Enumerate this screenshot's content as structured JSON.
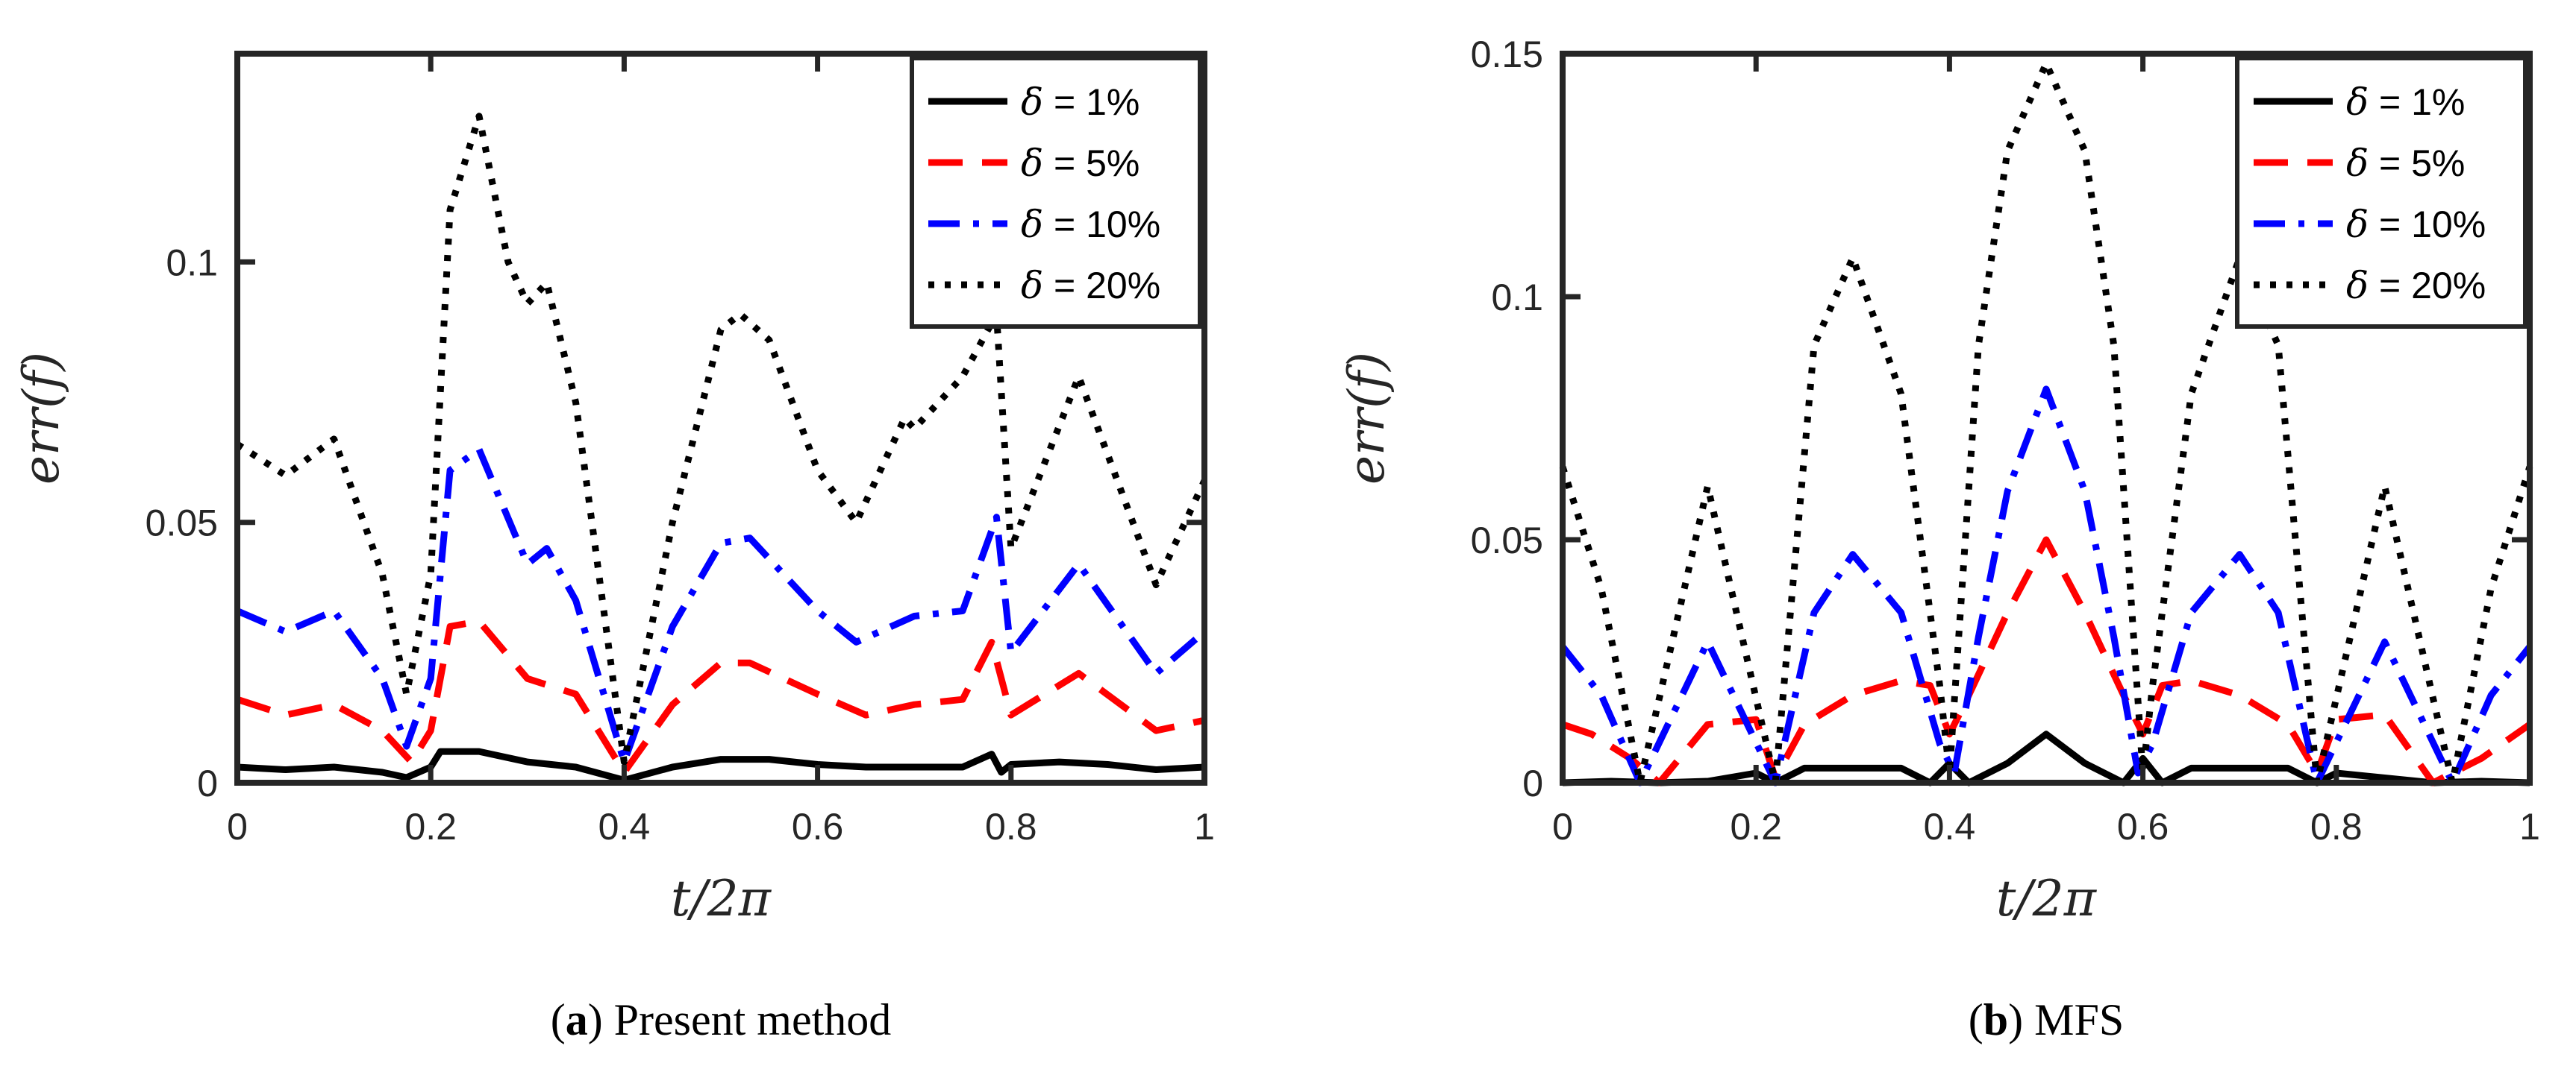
{
  "chart_data": [
    {
      "type": "line",
      "caption_letter": "a",
      "caption_text": "Present method",
      "xlabel": "t/2π",
      "ylabel": "err(f)",
      "xlim": [
        0,
        1
      ],
      "ylim": [
        0,
        0.14
      ],
      "xticks": [
        0,
        0.2,
        0.4,
        0.6,
        0.8,
        1
      ],
      "xtick_labels": [
        "0",
        "0.2",
        "0.4",
        "0.6",
        "0.8",
        "1"
      ],
      "yticks": [
        0,
        0.05,
        0.1
      ],
      "ytick_labels": [
        "0",
        "0.05",
        "0.1"
      ],
      "legend_position": "top-right",
      "series": [
        {
          "name": "δ = 1%",
          "delta": "δ",
          "legend_rest": " = 1%",
          "color": "#000000",
          "dash": "solid",
          "x": [
            0,
            0.05,
            0.1,
            0.15,
            0.175,
            0.2,
            0.21,
            0.25,
            0.3,
            0.35,
            0.4,
            0.45,
            0.5,
            0.55,
            0.6,
            0.65,
            0.7,
            0.75,
            0.78,
            0.79,
            0.8,
            0.85,
            0.9,
            0.95,
            1
          ],
          "y": [
            0.003,
            0.0025,
            0.003,
            0.002,
            0.001,
            0.003,
            0.006,
            0.006,
            0.004,
            0.003,
            0.0005,
            0.003,
            0.0045,
            0.0045,
            0.0035,
            0.003,
            0.003,
            0.003,
            0.0055,
            0.002,
            0.0035,
            0.004,
            0.0035,
            0.0025,
            0.003
          ]
        },
        {
          "name": "δ = 5%",
          "delta": "δ",
          "legend_rest": " = 5%",
          "color": "#ff0000",
          "dash": "dashed",
          "x": [
            0,
            0.05,
            0.1,
            0.15,
            0.18,
            0.2,
            0.22,
            0.25,
            0.3,
            0.35,
            0.4,
            0.45,
            0.5,
            0.53,
            0.6,
            0.65,
            0.7,
            0.75,
            0.78,
            0.8,
            0.87,
            0.95,
            1
          ],
          "y": [
            0.016,
            0.013,
            0.015,
            0.01,
            0.004,
            0.01,
            0.03,
            0.031,
            0.02,
            0.017,
            0.002,
            0.015,
            0.023,
            0.023,
            0.017,
            0.013,
            0.015,
            0.016,
            0.027,
            0.013,
            0.021,
            0.01,
            0.012
          ]
        },
        {
          "name": "δ = 10%",
          "delta": "δ",
          "legend_rest": " = 10%",
          "color": "#0000ff",
          "dash": "dashdot",
          "x": [
            0,
            0.05,
            0.1,
            0.15,
            0.175,
            0.2,
            0.22,
            0.25,
            0.3,
            0.32,
            0.35,
            0.4,
            0.45,
            0.5,
            0.53,
            0.6,
            0.64,
            0.7,
            0.75,
            0.785,
            0.8,
            0.87,
            0.95,
            1
          ],
          "y": [
            0.033,
            0.029,
            0.033,
            0.02,
            0.007,
            0.02,
            0.06,
            0.064,
            0.042,
            0.045,
            0.035,
            0.004,
            0.03,
            0.046,
            0.047,
            0.033,
            0.027,
            0.032,
            0.033,
            0.051,
            0.025,
            0.042,
            0.021,
            0.029
          ]
        },
        {
          "name": "δ = 20%",
          "delta": "δ",
          "legend_rest": " = 20%",
          "color": "#000000",
          "dash": "dotted",
          "x": [
            0,
            0.05,
            0.1,
            0.15,
            0.175,
            0.2,
            0.22,
            0.25,
            0.28,
            0.3,
            0.32,
            0.35,
            0.4,
            0.45,
            0.5,
            0.52,
            0.55,
            0.6,
            0.64,
            0.69,
            0.7,
            0.75,
            0.785,
            0.8,
            0.87,
            0.95,
            1
          ],
          "y": [
            0.065,
            0.059,
            0.066,
            0.04,
            0.017,
            0.04,
            0.11,
            0.128,
            0.1,
            0.092,
            0.096,
            0.073,
            0.004,
            0.05,
            0.087,
            0.09,
            0.085,
            0.06,
            0.05,
            0.07,
            0.068,
            0.078,
            0.09,
            0.045,
            0.078,
            0.038,
            0.058
          ]
        }
      ]
    },
    {
      "type": "line",
      "caption_letter": "b",
      "caption_text": "MFS",
      "xlabel": "t/2π",
      "ylabel": "err(f)",
      "xlim": [
        0,
        1
      ],
      "ylim": [
        0,
        0.15
      ],
      "xticks": [
        0,
        0.2,
        0.4,
        0.6,
        0.8,
        1
      ],
      "xtick_labels": [
        "0",
        "0.2",
        "0.4",
        "0.6",
        "0.8",
        "1"
      ],
      "yticks": [
        0,
        0.05,
        0.1,
        0.15
      ],
      "ytick_labels": [
        "0",
        "0.05",
        "0.1",
        "0.15"
      ],
      "legend_position": "top-right",
      "series": [
        {
          "name": "δ = 1%",
          "delta": "δ",
          "legend_rest": " = 1%",
          "color": "#000000",
          "dash": "solid",
          "x": [
            0,
            0.05,
            0.1,
            0.15,
            0.2,
            0.22,
            0.25,
            0.3,
            0.35,
            0.38,
            0.4,
            0.42,
            0.46,
            0.5,
            0.54,
            0.58,
            0.6,
            0.62,
            0.65,
            0.7,
            0.75,
            0.78,
            0.8,
            0.85,
            0.9,
            0.95,
            1
          ],
          "y": [
            0,
            0.0003,
            0,
            0.0003,
            0.002,
            0,
            0.003,
            0.003,
            0.003,
            0,
            0.004,
            0,
            0.004,
            0.01,
            0.004,
            0,
            0.005,
            0,
            0.003,
            0.003,
            0.003,
            0,
            0.002,
            0.001,
            0,
            0.0003,
            0
          ]
        },
        {
          "name": "δ = 5%",
          "delta": "δ",
          "legend_rest": " = 5%",
          "color": "#ff0000",
          "dash": "dashed",
          "x": [
            0,
            0.03,
            0.07,
            0.1,
            0.15,
            0.2,
            0.22,
            0.25,
            0.3,
            0.35,
            0.38,
            0.4,
            0.42,
            0.46,
            0.5,
            0.54,
            0.58,
            0.6,
            0.62,
            0.65,
            0.7,
            0.75,
            0.78,
            0.8,
            0.85,
            0.9,
            0.95,
            1
          ],
          "y": [
            0.012,
            0.01,
            0.005,
            0,
            0.012,
            0.013,
            0.001,
            0.012,
            0.018,
            0.021,
            0.02,
            0.01,
            0.018,
            0.035,
            0.05,
            0.035,
            0.018,
            0.01,
            0.02,
            0.021,
            0.018,
            0.012,
            0.002,
            0.013,
            0.014,
            0,
            0.005,
            0.012
          ]
        },
        {
          "name": "δ = 10%",
          "delta": "δ",
          "legend_rest": " = 10%",
          "color": "#0000ff",
          "dash": "dashdot",
          "x": [
            0,
            0.04,
            0.08,
            0.15,
            0.22,
            0.26,
            0.3,
            0.35,
            0.39,
            0.405,
            0.43,
            0.46,
            0.5,
            0.54,
            0.57,
            0.595,
            0.61,
            0.65,
            0.7,
            0.74,
            0.78,
            0.85,
            0.92,
            0.96,
            1
          ],
          "y": [
            0.028,
            0.018,
            0,
            0.029,
            0,
            0.035,
            0.047,
            0.035,
            0.008,
            0.002,
            0.03,
            0.06,
            0.081,
            0.06,
            0.03,
            0.002,
            0.008,
            0.035,
            0.047,
            0.035,
            0,
            0.029,
            0,
            0.018,
            0.028
          ]
        },
        {
          "name": "δ = 20%",
          "delta": "δ",
          "legend_rest": " = 20%",
          "color": "#000000",
          "dash": "dotted",
          "x": [
            0,
            0.04,
            0.08,
            0.15,
            0.22,
            0.26,
            0.3,
            0.35,
            0.39,
            0.4,
            0.43,
            0.46,
            0.5,
            0.54,
            0.57,
            0.6,
            0.61,
            0.65,
            0.7,
            0.74,
            0.78,
            0.85,
            0.92,
            0.96,
            1
          ],
          "y": [
            0.065,
            0.04,
            0,
            0.061,
            0,
            0.09,
            0.108,
            0.08,
            0.02,
            0.002,
            0.09,
            0.13,
            0.148,
            0.13,
            0.09,
            0.002,
            0.02,
            0.08,
            0.108,
            0.09,
            0,
            0.061,
            0,
            0.04,
            0.065
          ]
        }
      ]
    }
  ]
}
